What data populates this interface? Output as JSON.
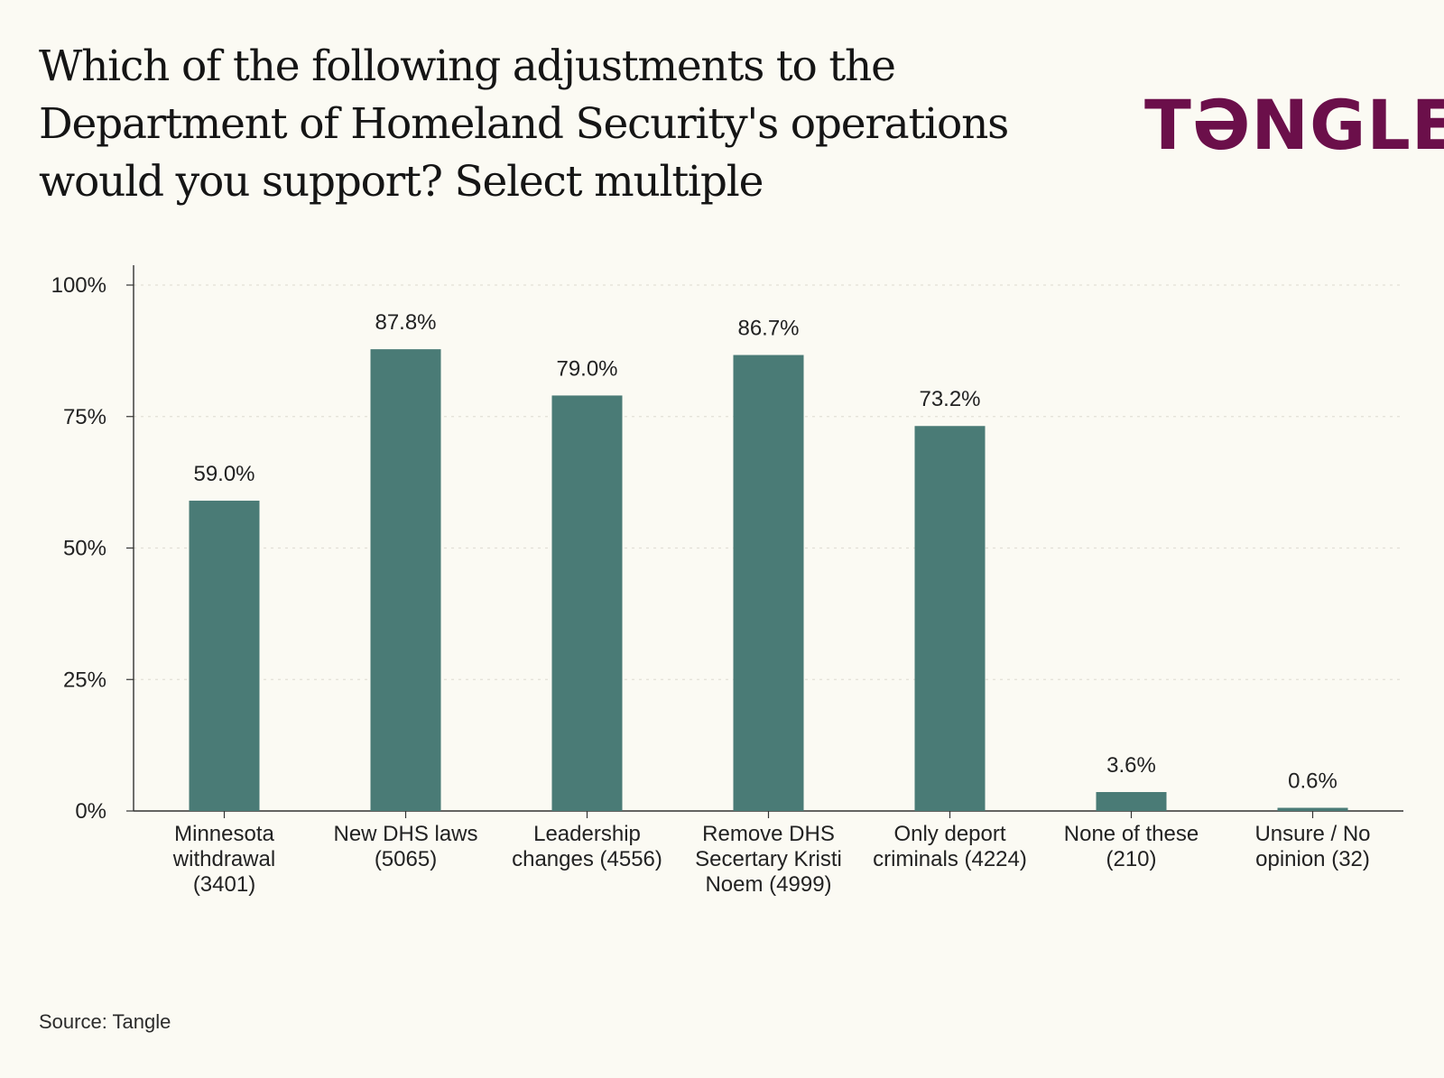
{
  "header": {
    "title": "Which of the following adjustments to the Department of Homeland Security's operations would you support? Select multiple",
    "logo_text": "TƏNGLE"
  },
  "footer": {
    "source": "Source: Tangle"
  },
  "colors": {
    "bar": "#4a7b76",
    "background": "#fbfaf3",
    "logo": "#6b0f4a",
    "axis": "#333333",
    "grid": "#e2e0d6"
  },
  "chart_data": {
    "type": "bar",
    "title": "Which of the following adjustments to the Department of Homeland Security's operations would you support? Select multiple",
    "categories": [
      [
        "Minnesota",
        "withdrawal",
        "(3401)"
      ],
      [
        "New DHS laws",
        "(5065)"
      ],
      [
        "Leadership",
        "changes (4556)"
      ],
      [
        "Remove DHS",
        "Secertary Kristi",
        "Noem (4999)"
      ],
      [
        "Only deport",
        "criminals (4224)"
      ],
      [
        "None of these",
        "(210)"
      ],
      [
        "Unsure / No",
        "opinion (32)"
      ]
    ],
    "values": [
      59.0,
      87.8,
      79.0,
      86.7,
      73.2,
      3.6,
      0.6
    ],
    "value_labels": [
      "59.0%",
      "87.8%",
      "79.0%",
      "86.7%",
      "73.2%",
      "3.6%",
      "0.6%"
    ],
    "yticks": [
      0,
      25,
      50,
      75,
      100
    ],
    "ytick_labels": [
      "0%",
      "25%",
      "50%",
      "75%",
      "100%"
    ],
    "ylim": [
      0,
      100
    ],
    "xlabel": "",
    "ylabel": "",
    "grid": true,
    "legend": "none"
  }
}
